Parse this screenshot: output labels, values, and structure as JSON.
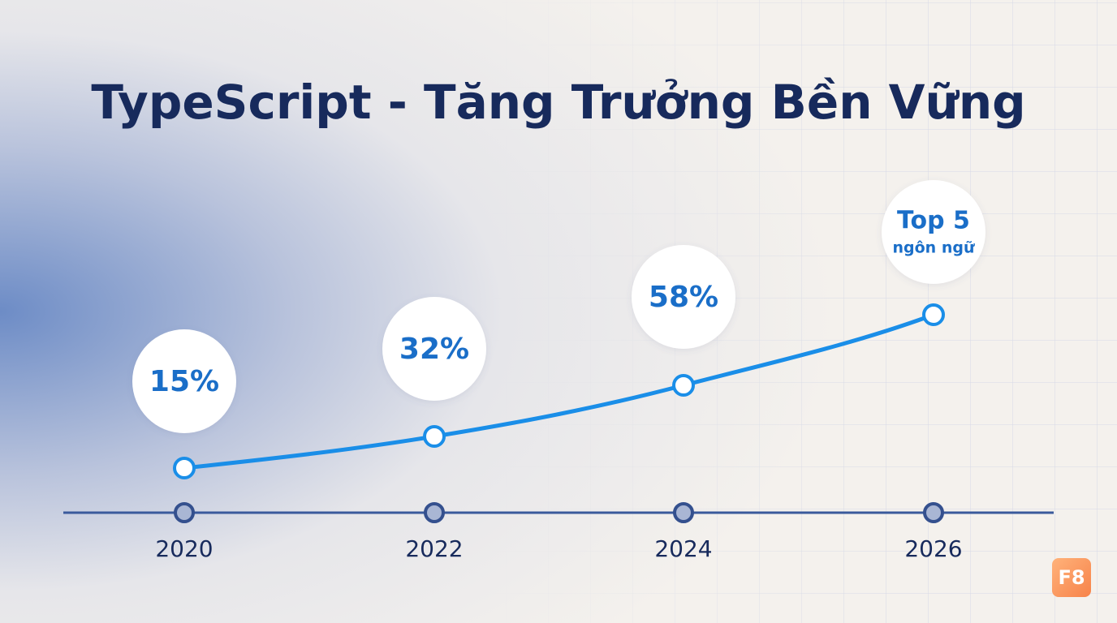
{
  "header": {
    "title": "TypeScript - Tăng Trưởng Bền Vững"
  },
  "timeline": [
    {
      "year": "2020",
      "label": [
        "15%"
      ]
    },
    {
      "year": "2022",
      "label": [
        "32%"
      ]
    },
    {
      "year": "2024",
      "label": [
        "58%"
      ]
    },
    {
      "year": "2026",
      "label": [
        "Top 5",
        "ngôn ngữ"
      ]
    }
  ],
  "logo": "F8"
}
